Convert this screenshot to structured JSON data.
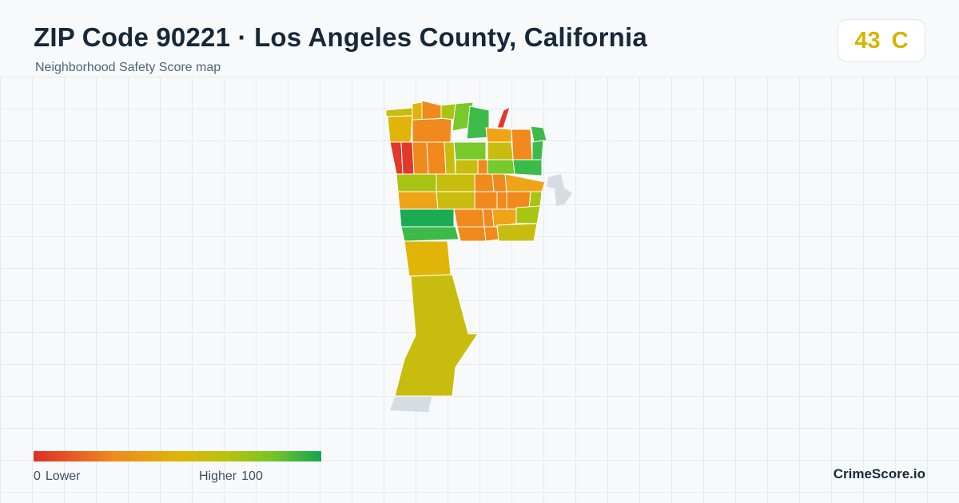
{
  "header": {
    "title": "ZIP Code 90221 · Los Angeles County, California",
    "subtitle": "Neighborhood Safety Score map"
  },
  "score": {
    "value": "43",
    "grade": "C",
    "color": "#d7b300"
  },
  "legend": {
    "min_value": "0",
    "min_label": "Lower",
    "max_label": "Higher",
    "max_value": "100",
    "colors": [
      "#dc2f28",
      "#f08a1c",
      "#e0b409",
      "#b6c20e",
      "#72c32a",
      "#12a552"
    ]
  },
  "brand": "CrimeScore.io",
  "map": {
    "neighbor_area_color": "#d5dde3",
    "block_colors": {
      "red": "#e0392b",
      "orange": "#f08a1c",
      "amber": "#eea416",
      "yellow": "#e0b409",
      "olive": "#c8bc0e",
      "lime": "#a7c512",
      "lightgreen": "#78c92a",
      "green": "#3dbb4a",
      "darkgreen": "#1bab55"
    }
  }
}
